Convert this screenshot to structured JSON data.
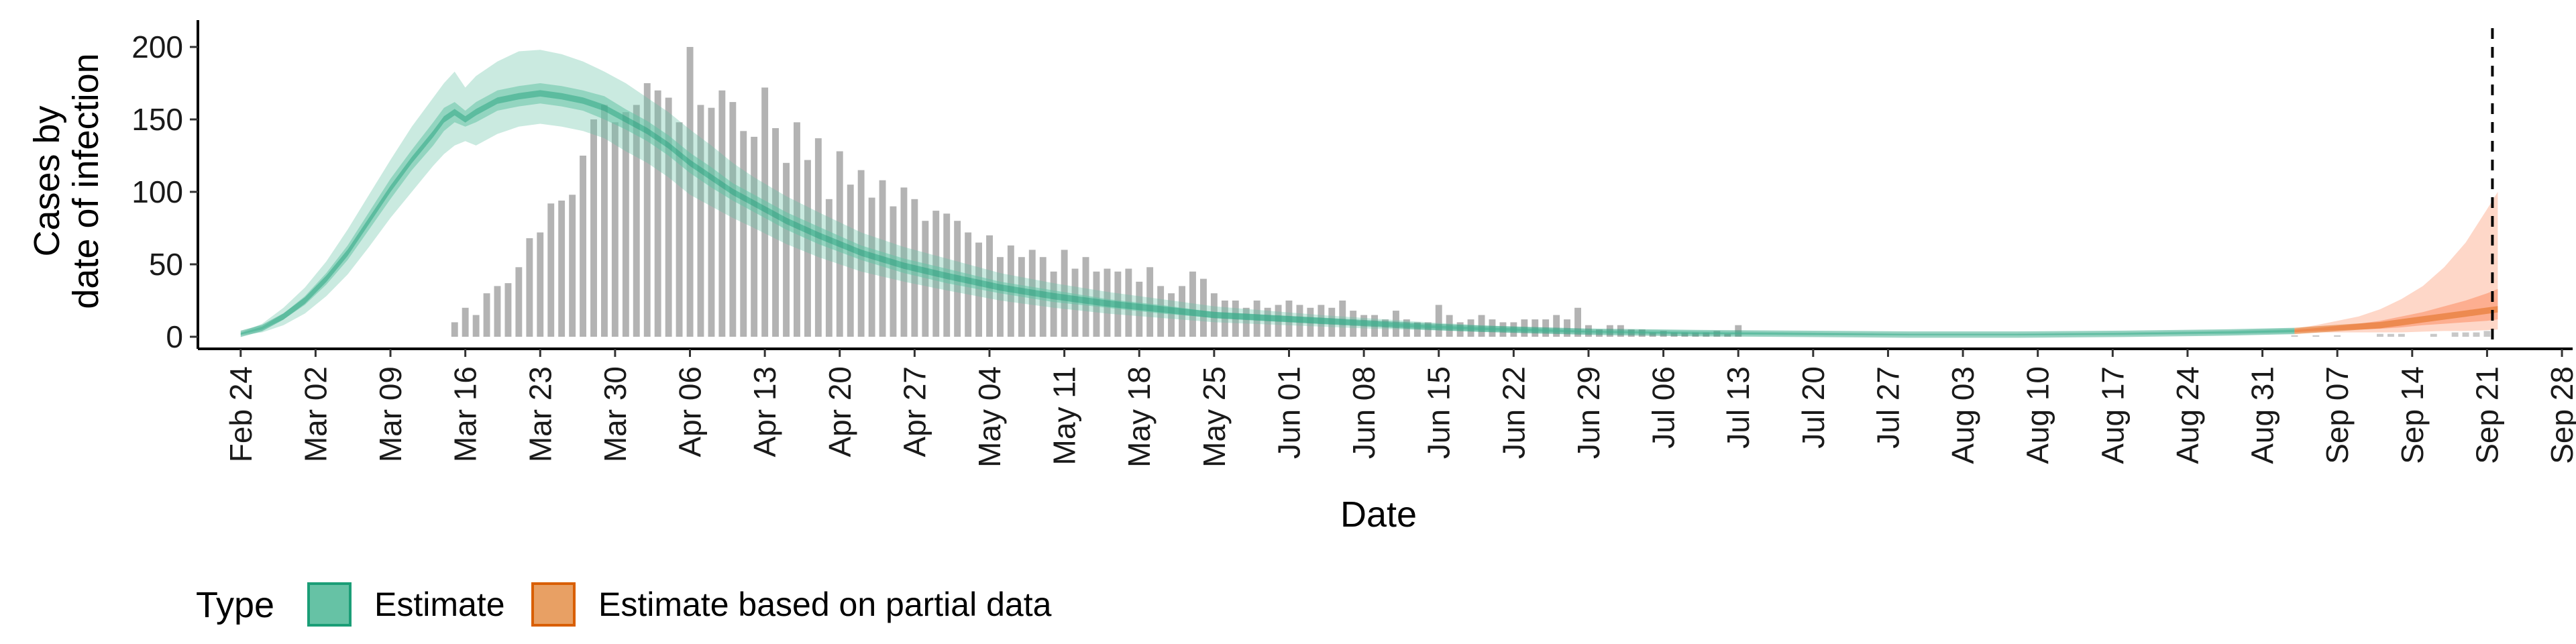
{
  "chart_data": {
    "type": "bar",
    "title": "",
    "xlabel": "Date",
    "ylabel_lines": [
      "Cases by",
      "date of infection"
    ],
    "x_start": "2020-02-20",
    "xlim_days": [
      0,
      222
    ],
    "ylim": [
      0,
      215
    ],
    "y_ticks": [
      0,
      50,
      100,
      150,
      200
    ],
    "x_ticks": [
      {
        "day": 4,
        "label": "Feb 24"
      },
      {
        "day": 11,
        "label": "Mar 02"
      },
      {
        "day": 18,
        "label": "Mar 09"
      },
      {
        "day": 25,
        "label": "Mar 16"
      },
      {
        "day": 32,
        "label": "Mar 23"
      },
      {
        "day": 39,
        "label": "Mar 30"
      },
      {
        "day": 46,
        "label": "Apr 06"
      },
      {
        "day": 53,
        "label": "Apr 13"
      },
      {
        "day": 60,
        "label": "Apr 20"
      },
      {
        "day": 67,
        "label": "Apr 27"
      },
      {
        "day": 74,
        "label": "May 04"
      },
      {
        "day": 81,
        "label": "May 11"
      },
      {
        "day": 88,
        "label": "May 18"
      },
      {
        "day": 95,
        "label": "May 25"
      },
      {
        "day": 102,
        "label": "Jun 01"
      },
      {
        "day": 109,
        "label": "Jun 08"
      },
      {
        "day": 116,
        "label": "Jun 15"
      },
      {
        "day": 123,
        "label": "Jun 22"
      },
      {
        "day": 130,
        "label": "Jun 29"
      },
      {
        "day": 137,
        "label": "Jul 06"
      },
      {
        "day": 144,
        "label": "Jul 13"
      },
      {
        "day": 151,
        "label": "Jul 20"
      },
      {
        "day": 158,
        "label": "Jul 27"
      },
      {
        "day": 165,
        "label": "Aug 03"
      },
      {
        "day": 172,
        "label": "Aug 10"
      },
      {
        "day": 179,
        "label": "Aug 17"
      },
      {
        "day": 186,
        "label": "Aug 24"
      },
      {
        "day": 193,
        "label": "Aug 31"
      },
      {
        "day": 200,
        "label": "Sep 07"
      },
      {
        "day": 207,
        "label": "Sep 14"
      },
      {
        "day": 214,
        "label": "Sep 21"
      },
      {
        "day": 221,
        "label": "Sep 28"
      }
    ],
    "vline_day": 214.5,
    "bars_start_day": 24,
    "bars": [
      10,
      20,
      15,
      30,
      35,
      37,
      48,
      68,
      72,
      92,
      94,
      98,
      125,
      150,
      160,
      148,
      155,
      160,
      175,
      170,
      165,
      148,
      200,
      160,
      158,
      170,
      162,
      142,
      138,
      172,
      144,
      120,
      148,
      122,
      137,
      95,
      128,
      105,
      115,
      96,
      108,
      90,
      103,
      95,
      80,
      87,
      85,
      80,
      72,
      65,
      70,
      55,
      63,
      55,
      60,
      55,
      45,
      60,
      47,
      55,
      45,
      47,
      45,
      47,
      38,
      48,
      35,
      30,
      35,
      45,
      40,
      30,
      25,
      25,
      20,
      25,
      20,
      22,
      25,
      22,
      20,
      22,
      20,
      25,
      18,
      15,
      15,
      12,
      18,
      12,
      10,
      10,
      22,
      15,
      10,
      12,
      15,
      12,
      10,
      10,
      12,
      12,
      12,
      15,
      12,
      20,
      8,
      5,
      8,
      8,
      5,
      5,
      3,
      4,
      3,
      3,
      3,
      3,
      4,
      2,
      8
    ],
    "series": [
      {
        "name": "Estimate",
        "color": "#1b9e77",
        "fill": "#66c2a5",
        "days": [
          4,
          6,
          8,
          10,
          12,
          14,
          16,
          18,
          20,
          22,
          23,
          24,
          25,
          26,
          28,
          30,
          32,
          34,
          36,
          38,
          40,
          42,
          44,
          46,
          48,
          50,
          52,
          55,
          58,
          62,
          66,
          70,
          75,
          80,
          85,
          90,
          95,
          100,
          105,
          110,
          115,
          120,
          125,
          130,
          135,
          140,
          150,
          160,
          170,
          180,
          190,
          196
        ],
        "median": [
          2,
          6,
          14,
          25,
          40,
          58,
          80,
          102,
          122,
          140,
          150,
          155,
          150,
          155,
          163,
          166,
          168,
          166,
          163,
          158,
          150,
          142,
          132,
          120,
          110,
          100,
          92,
          80,
          70,
          58,
          49,
          42,
          34,
          28,
          23,
          19,
          15,
          13,
          11,
          9,
          7,
          5.5,
          4.5,
          3.5,
          3,
          2.5,
          2,
          1.5,
          1.5,
          2,
          3,
          4
        ],
        "inner_lo": [
          1.5,
          5,
          12,
          22,
          36,
          53,
          74,
          95,
          115,
          132,
          142,
          148,
          145,
          148,
          156,
          159,
          161,
          159,
          156,
          150,
          143,
          135,
          125,
          113,
          103,
          94,
          86,
          74,
          64,
          53,
          44,
          37,
          30,
          24,
          20,
          16,
          13,
          11,
          9,
          7.5,
          6,
          4.5,
          3.5,
          3,
          2.5,
          2,
          1.5,
          1.2,
          1.2,
          1.6,
          2.5,
          3.3
        ],
        "inner_hi": [
          2.5,
          7,
          16,
          28,
          44,
          63,
          86,
          109,
          129,
          148,
          158,
          162,
          156,
          162,
          170,
          173,
          175,
          173,
          170,
          166,
          157,
          149,
          139,
          127,
          117,
          106,
          98,
          86,
          76,
          63,
          54,
          47,
          38,
          32,
          26,
          22,
          17,
          15,
          13,
          10.5,
          8,
          6.5,
          5.5,
          4,
          3.5,
          3,
          2.5,
          1.8,
          1.8,
          2.4,
          3.5,
          4.7
        ],
        "outer_lo": [
          1,
          3,
          8,
          16,
          28,
          43,
          62,
          82,
          100,
          118,
          126,
          132,
          135,
          132,
          140,
          145,
          147,
          145,
          142,
          137,
          128,
          120,
          110,
          98,
          90,
          82,
          75,
          64,
          55,
          45,
          38,
          32,
          25,
          20,
          16,
          13,
          10,
          8.5,
          7,
          5.5,
          4.5,
          3.5,
          2.5,
          2,
          1.8,
          1.5,
          1,
          0.8,
          0.8,
          1.1,
          1.8,
          2.5
        ],
        "outer_hi": [
          3,
          9,
          20,
          34,
          52,
          74,
          98,
          122,
          145,
          165,
          175,
          183,
          172,
          180,
          190,
          197,
          198,
          195,
          190,
          183,
          175,
          165,
          155,
          143,
          132,
          120,
          110,
          97,
          86,
          72,
          62,
          54,
          44,
          37,
          31,
          26,
          21,
          18,
          15,
          12.5,
          10,
          8,
          6.5,
          5,
          4.5,
          4,
          3,
          2.3,
          2.3,
          3,
          4.3,
          5.7
        ]
      },
      {
        "name": "Estimate based on partial data",
        "color": "#d95f02",
        "fill": "#fc8d62",
        "days": [
          196,
          198,
          200,
          202,
          204,
          206,
          208,
          210,
          212,
          214,
          215
        ],
        "median": [
          4,
          5,
          6,
          7,
          8,
          10,
          12,
          14,
          16,
          18,
          19
        ],
        "inner_lo": [
          3.2,
          4,
          4.5,
          5,
          5.5,
          6.5,
          8,
          9,
          10,
          11,
          12
        ],
        "inner_hi": [
          4.8,
          6,
          7.5,
          9,
          11,
          14,
          17,
          21,
          25,
          30,
          33
        ],
        "outer_lo": [
          2.5,
          3,
          3,
          3,
          3,
          3,
          3.5,
          4,
          4,
          4.5,
          5
        ],
        "outer_hi": [
          5.5,
          8,
          11,
          14,
          19,
          26,
          35,
          48,
          65,
          88,
          100
        ]
      }
    ],
    "partial_bars": [
      {
        "day": 196,
        "value": 1
      },
      {
        "day": 198,
        "value": 1
      },
      {
        "day": 200,
        "value": 1
      },
      {
        "day": 204,
        "value": 2
      },
      {
        "day": 205,
        "value": 2
      },
      {
        "day": 206,
        "value": 2
      },
      {
        "day": 209,
        "value": 2
      },
      {
        "day": 211,
        "value": 3
      },
      {
        "day": 212,
        "value": 3
      },
      {
        "day": 213,
        "value": 3
      },
      {
        "day": 214,
        "value": 4
      }
    ],
    "legend": {
      "title": "Type",
      "placement": "bottom-left",
      "items": [
        {
          "label": "Estimate",
          "fill": "#66c2a5",
          "border": "#1b9e77"
        },
        {
          "label": "Estimate based on partial data",
          "fill": "#e8a064",
          "border": "#d95f02"
        }
      ]
    },
    "grid": false
  }
}
